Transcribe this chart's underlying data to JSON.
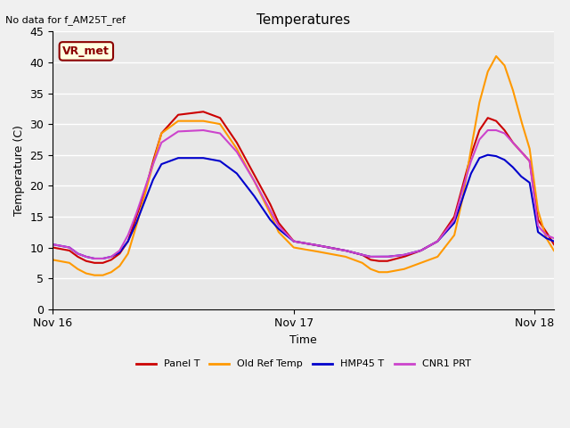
{
  "title": "Temperatures",
  "xlabel": "Time",
  "ylabel": "Temperature (C)",
  "ylim": [
    0,
    45
  ],
  "no_data_text": "No data for f_AM25T_ref",
  "vr_met_label": "VR_met",
  "background_color": "#e8e8e8",
  "legend_entries": [
    "Panel T",
    "Old Ref Temp",
    "HMP45 T",
    "CNR1 PRT"
  ],
  "line_colors": [
    "#cc0000",
    "#ff9900",
    "#0000cc",
    "#cc44cc"
  ],
  "xtick_labels": [
    "Nov 16",
    "Nov 17",
    "Nov 18"
  ],
  "xtick_positions": [
    0,
    288,
    576
  ],
  "total_points": 600,
  "keypoints_x": [
    0,
    20,
    30,
    40,
    50,
    60,
    70,
    80,
    90,
    100,
    110,
    120,
    130,
    150,
    180,
    200,
    220,
    240,
    260,
    270,
    288,
    310,
    330,
    350,
    370,
    380,
    390,
    400,
    420,
    440,
    460,
    480,
    490,
    500,
    510,
    520,
    530,
    540,
    550,
    560,
    570,
    580,
    590,
    599
  ],
  "panel_t": [
    10.0,
    9.5,
    8.5,
    7.8,
    7.5,
    7.5,
    8.0,
    9.0,
    11.0,
    15.0,
    19.0,
    24.0,
    28.5,
    31.5,
    32.0,
    31.0,
    27.0,
    22.0,
    17.0,
    14.0,
    11.0,
    10.5,
    10.0,
    9.5,
    8.8,
    8.0,
    7.8,
    7.8,
    8.5,
    9.5,
    11.0,
    15.0,
    20.0,
    25.0,
    29.0,
    31.0,
    30.5,
    29.0,
    27.0,
    25.5,
    24.0,
    14.5,
    12.5,
    10.5
  ],
  "old_ref_t": [
    8.0,
    7.5,
    6.5,
    5.8,
    5.5,
    5.5,
    6.0,
    7.0,
    9.0,
    13.5,
    18.5,
    23.5,
    28.5,
    30.5,
    30.5,
    30.0,
    26.0,
    21.0,
    15.5,
    12.5,
    10.0,
    9.5,
    9.0,
    8.5,
    7.5,
    6.5,
    6.0,
    6.0,
    6.5,
    7.5,
    8.5,
    12.0,
    18.0,
    26.0,
    33.5,
    38.5,
    41.0,
    39.5,
    35.5,
    30.5,
    26.0,
    16.0,
    11.5,
    9.5
  ],
  "hmp45_t": [
    10.5,
    10.0,
    9.0,
    8.5,
    8.2,
    8.2,
    8.5,
    9.2,
    11.0,
    14.0,
    17.5,
    21.0,
    23.5,
    24.5,
    24.5,
    24.0,
    22.0,
    18.5,
    14.5,
    13.0,
    11.0,
    10.5,
    10.0,
    9.5,
    8.8,
    8.5,
    8.5,
    8.5,
    8.8,
    9.5,
    11.0,
    14.0,
    18.0,
    22.0,
    24.5,
    25.0,
    24.8,
    24.2,
    23.0,
    21.5,
    20.5,
    12.5,
    11.5,
    11.0
  ],
  "cnr1_prt": [
    10.5,
    10.0,
    9.0,
    8.5,
    8.2,
    8.2,
    8.5,
    9.5,
    12.0,
    15.5,
    19.5,
    23.5,
    27.0,
    28.8,
    29.0,
    28.5,
    25.5,
    21.0,
    16.0,
    13.5,
    11.0,
    10.5,
    10.0,
    9.5,
    8.8,
    8.5,
    8.5,
    8.5,
    8.8,
    9.5,
    11.0,
    14.5,
    19.5,
    24.0,
    27.5,
    29.0,
    29.0,
    28.5,
    27.0,
    25.5,
    24.0,
    13.5,
    12.0,
    11.5
  ]
}
